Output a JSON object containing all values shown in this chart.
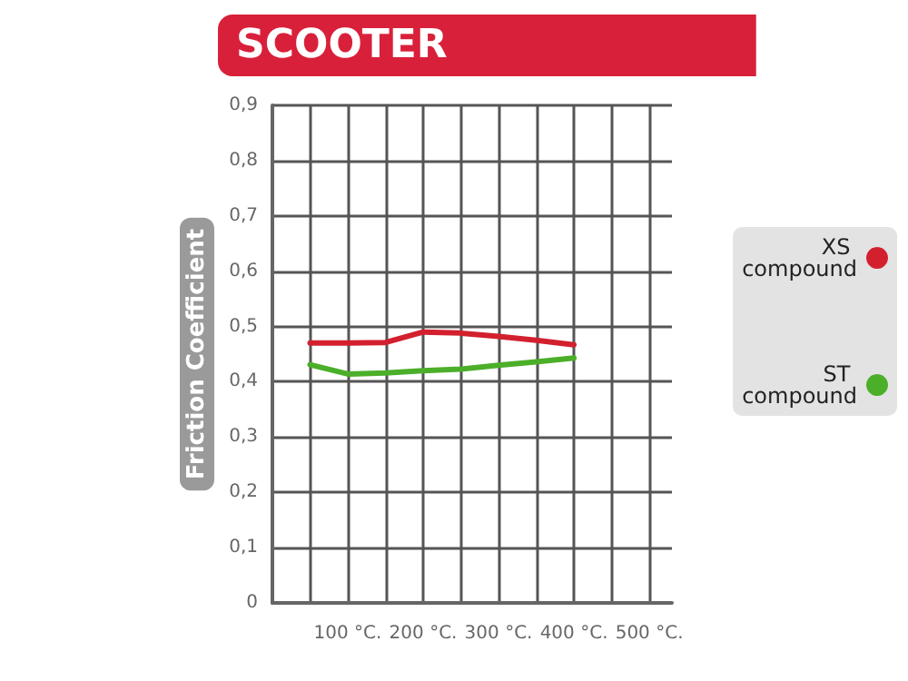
{
  "chart_data": {
    "type": "line",
    "title": "SCOOTER",
    "ylabel": "Friction Coefficient",
    "x": [
      50,
      100,
      150,
      200,
      250,
      300,
      350,
      400
    ],
    "series": [
      {
        "name": "XS compound",
        "color": "#d3202f",
        "values": [
          0.47,
          0.47,
          0.471,
          0.49,
          0.488,
          0.482,
          0.475,
          0.467
        ]
      },
      {
        "name": "ST compound",
        "color": "#4caf2a",
        "values": [
          0.431,
          0.414,
          0.416,
          0.42,
          0.423,
          0.43,
          0.436,
          0.443
        ]
      }
    ],
    "xlim": [
      0,
      530
    ],
    "xticks": [
      {
        "value": 50,
        "label": null
      },
      {
        "value": 100,
        "label": "100 °C."
      },
      {
        "value": 150,
        "label": null
      },
      {
        "value": 200,
        "label": "200 °C."
      },
      {
        "value": 250,
        "label": null
      },
      {
        "value": 300,
        "label": "300 °C."
      },
      {
        "value": 350,
        "label": null
      },
      {
        "value": 400,
        "label": "400 °C."
      },
      {
        "value": 450,
        "label": null
      },
      {
        "value": 500,
        "label": "500 °C."
      }
    ],
    "ylim": [
      0,
      0.9
    ],
    "yticks": [
      0,
      {
        "value": 0.1,
        "label": "0,1"
      },
      {
        "value": 0.2,
        "label": "0,2"
      },
      {
        "value": 0.3,
        "label": "0,3"
      },
      {
        "value": 0.4,
        "label": "0,4"
      },
      {
        "value": 0.5,
        "label": "0,5"
      },
      {
        "value": 0.6,
        "label": "0,6"
      },
      {
        "value": 0.7,
        "label": "0,7"
      },
      {
        "value": 0.8,
        "label": "0,8"
      },
      {
        "value": 0.9,
        "label": "0,9"
      }
    ],
    "grid": true,
    "legend": "right",
    "marker": "none",
    "line_style": "solid"
  }
}
